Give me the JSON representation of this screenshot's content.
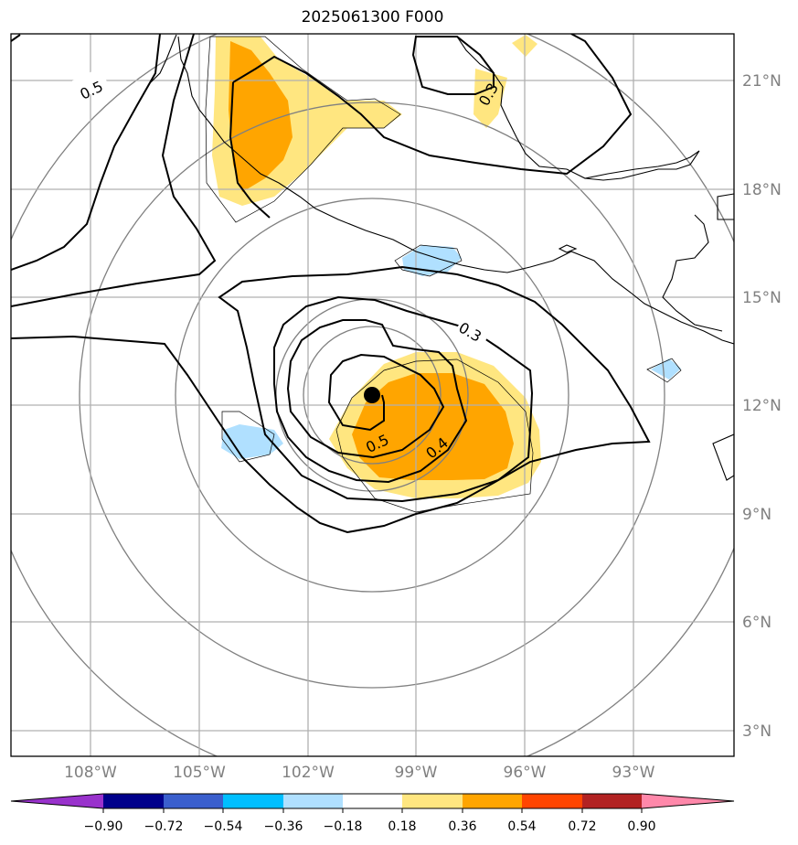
{
  "title": "2025061300 F000",
  "map": {
    "lon_ticks": [
      "108°W",
      "105°W",
      "102°W",
      "99°W",
      "96°W",
      "93°W"
    ],
    "lat_ticks": [
      "3°N",
      "6°N",
      "9°N",
      "12°N",
      "15°N",
      "18°N",
      "21°N"
    ],
    "contour_labels": [
      "0.5",
      "0.3",
      "0.3",
      "0.5",
      "0.4"
    ],
    "center_marker": "storm-center"
  },
  "colorbar": {
    "ticks": [
      "−0.90",
      "−0.72",
      "−0.54",
      "−0.36",
      "−0.18",
      "0.18",
      "0.36",
      "0.54",
      "0.72",
      "0.90"
    ],
    "colors": [
      "#9932cc",
      "#00008b",
      "#3a5fcd",
      "#00bfff",
      "#b0e0ff",
      "#ffffff",
      "#ffe680",
      "#ffa500",
      "#ff4500",
      "#b22222",
      "#ff88aa"
    ]
  }
}
